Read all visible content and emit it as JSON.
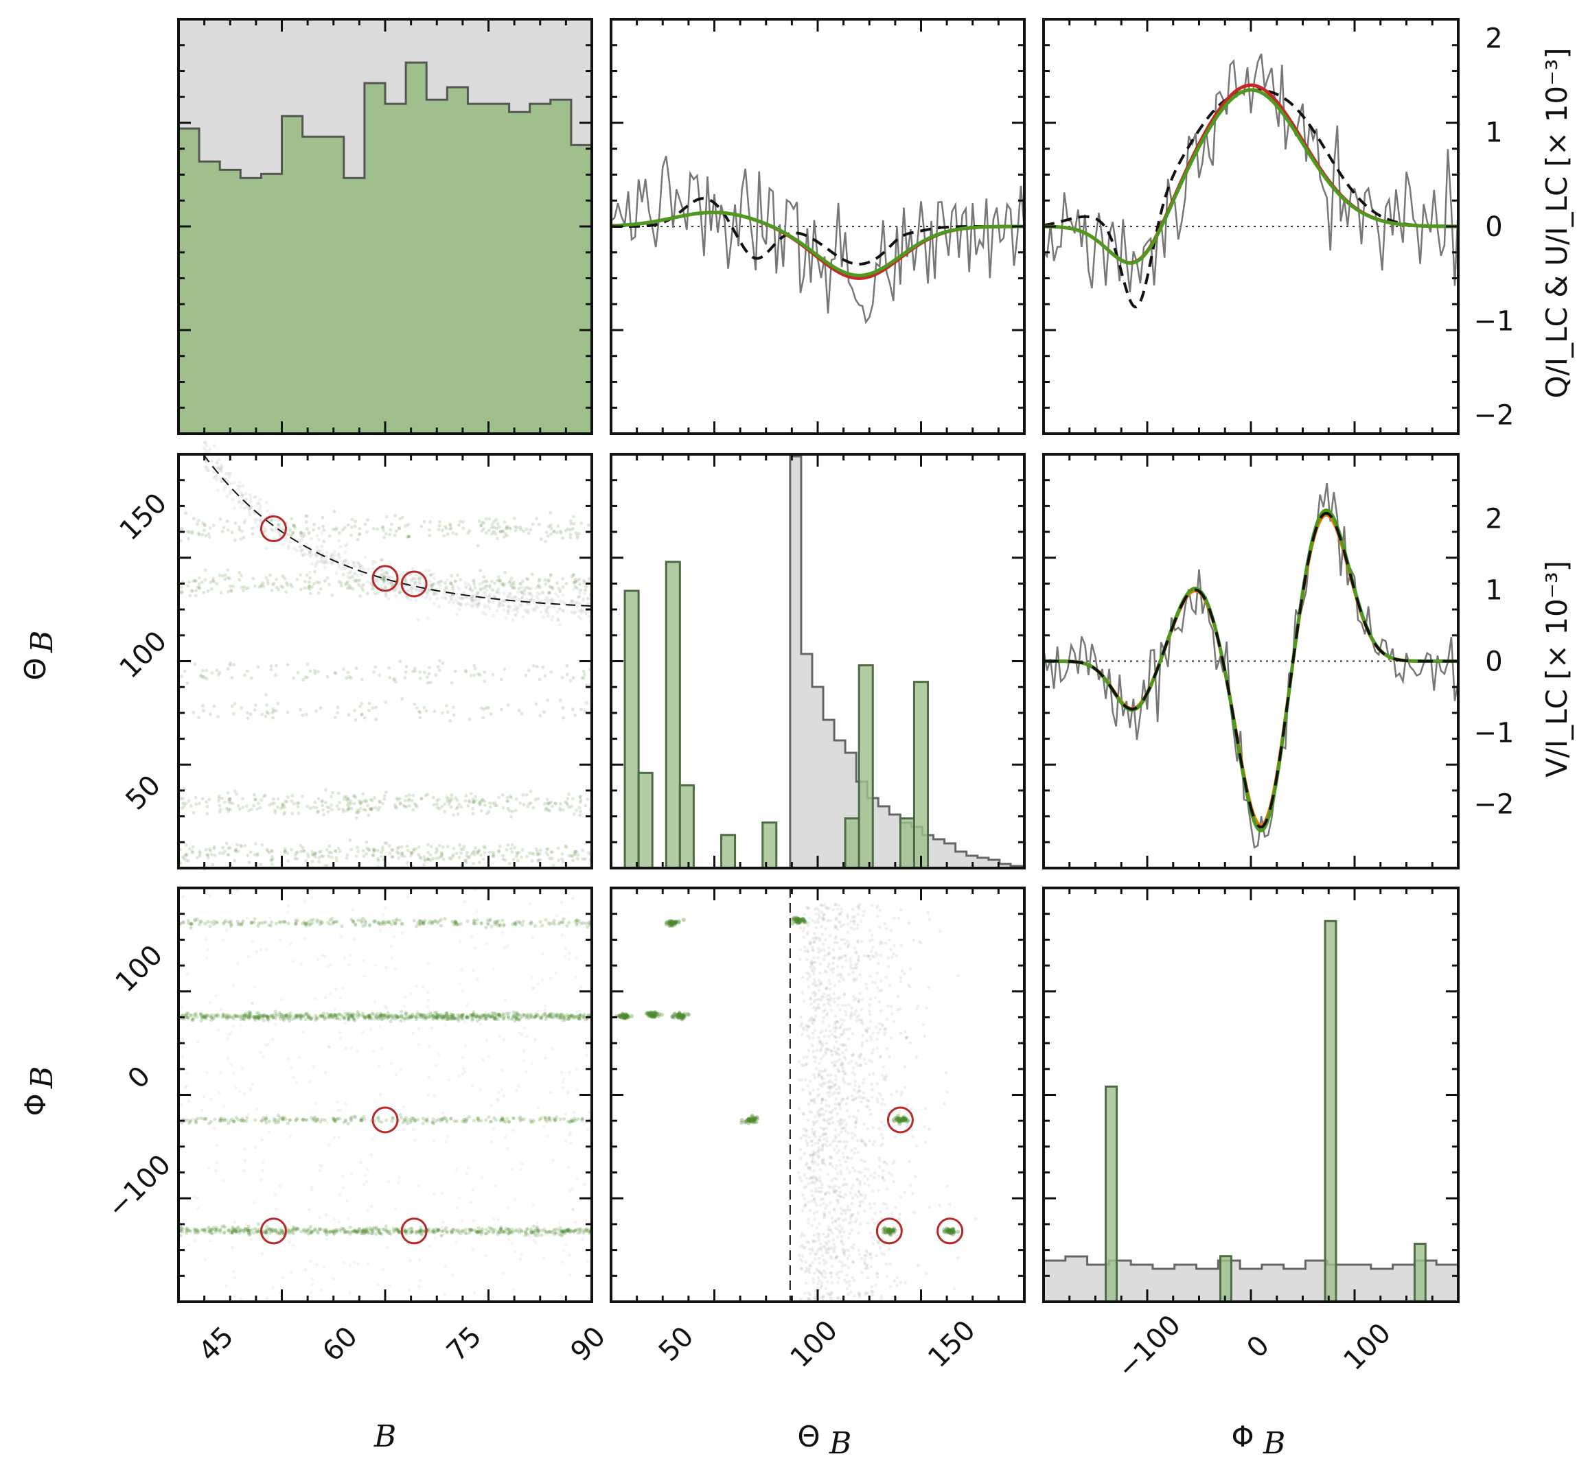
{
  "colors": {
    "green_fill": "#9fbf8c",
    "green_marker": "#4a8a2a",
    "gray_fill": "#dcdcdc",
    "gray_line": "#6a6a6a",
    "red_circle": "#b8282a",
    "red_curve": "#c62828",
    "orange_curve": "#e07b00",
    "green_curve": "#4e9a1f",
    "black": "#111111"
  },
  "chart_data": {
    "type": "corner-plot",
    "variables": [
      "B",
      "Θ_B",
      "Φ_B"
    ],
    "labels": {
      "xlabels": [
        "B",
        "Θ",
        "Φ"
      ],
      "subscript": "B",
      "ylabel_theta": "Θ",
      "ylabel_phi": "Φ",
      "right_label_qu": "Q/I_LC & U/I_LC  [× 10⁻³]",
      "right_label_v": "V/I_LC  [× 10⁻³]"
    },
    "axes": {
      "B": {
        "range": [
          40,
          90
        ],
        "ticks": [
          45,
          60,
          75,
          90
        ],
        "tick_labels": [
          "45",
          "60",
          "75",
          "90"
        ]
      },
      "theta": {
        "range": [
          25,
          175
        ],
        "ticks": [
          50,
          100,
          150
        ],
        "tick_labels": [
          "50",
          "100",
          "150"
        ]
      },
      "phi": {
        "range": [
          -200,
          180
        ],
        "ticks": [
          -100,
          0,
          100
        ],
        "tick_labels": [
          "−100",
          "0",
          "100"
        ]
      },
      "qu": {
        "range": [
          -2.2,
          2.2
        ],
        "ticks": [
          -2,
          -1,
          0,
          1,
          2
        ],
        "tick_labels": [
          "−2",
          "−1",
          "0",
          "1",
          "2"
        ]
      },
      "v": {
        "range": [
          -2.9,
          2.9
        ],
        "ticks": [
          -2,
          -1,
          0,
          1,
          2
        ],
        "tick_labels": [
          "−2",
          "−1",
          "0",
          "1",
          "2"
        ]
      }
    },
    "hist_B": {
      "bin_edges": [
        40,
        42.5,
        45,
        47.5,
        50,
        52.5,
        55,
        57.5,
        60,
        62.5,
        65,
        67.5,
        70,
        72.5,
        75,
        77.5,
        80,
        82.5,
        85,
        87.5,
        90
      ],
      "gray": [
        1.0,
        1.0,
        1.0,
        1.0,
        1.0,
        1.0,
        1.0,
        1.0,
        1.0,
        1.0,
        1.0,
        1.0,
        1.0,
        1.0,
        1.0,
        1.0,
        1.0,
        1.0,
        1.0,
        1.0
      ],
      "green": [
        0.74,
        0.66,
        0.64,
        0.62,
        0.63,
        0.77,
        0.72,
        0.72,
        0.62,
        0.85,
        0.8,
        0.9,
        0.81,
        0.84,
        0.8,
        0.8,
        0.78,
        0.8,
        0.81,
        0.7
      ]
    },
    "hist_theta": {
      "gray_bin_edges": [
        90,
        94,
        98,
        102,
        106,
        110,
        114,
        118,
        122,
        126,
        130,
        134,
        138,
        142,
        146,
        150,
        154,
        158,
        162,
        166,
        170,
        175
      ],
      "gray": [
        1.0,
        0.52,
        0.44,
        0.36,
        0.31,
        0.28,
        0.21,
        0.17,
        0.15,
        0.13,
        0.11,
        0.1,
        0.08,
        0.07,
        0.06,
        0.04,
        0.03,
        0.025,
        0.02,
        0.01,
        0.005
      ],
      "green_bin_edges": [
        30,
        35,
        40,
        45,
        50,
        55,
        60,
        65,
        70,
        75,
        80,
        85,
        90,
        95,
        100,
        105,
        110,
        115,
        120,
        125,
        130,
        135,
        140,
        145,
        150,
        155
      ],
      "green": [
        0.67,
        0.23,
        0,
        0.74,
        0.2,
        0,
        0,
        0.08,
        0,
        0,
        0.11,
        0,
        0,
        0,
        0,
        0,
        0.12,
        0.49,
        0,
        0,
        0.12,
        0.45,
        0,
        0,
        0
      ]
    },
    "hist_phi": {
      "bin_edges": [
        -200,
        -180,
        -160,
        -140,
        -120,
        -100,
        -80,
        -60,
        -40,
        -20,
        0,
        20,
        40,
        60,
        80,
        100,
        120,
        140,
        160,
        180
      ],
      "gray": [
        0.1,
        0.11,
        0.09,
        0.1,
        0.09,
        0.08,
        0.09,
        0.08,
        0.1,
        0.08,
        0.09,
        0.08,
        0.1,
        0.09,
        0.09,
        0.08,
        0.09,
        0.1,
        0.09
      ],
      "green_bars": [
        {
          "x0": -143,
          "x1": -133,
          "h": 0.52
        },
        {
          "x0": -38,
          "x1": -28,
          "h": 0.11
        },
        {
          "x0": 58,
          "x1": 68,
          "h": 0.92
        },
        {
          "x0": 140,
          "x1": 150,
          "h": 0.14
        }
      ]
    },
    "scatter_B_theta": {
      "theta_bands": [
        148,
        128,
        96,
        82,
        48,
        30
      ],
      "band_weights": [
        0.5,
        0.6,
        0.25,
        0.2,
        0.7,
        0.7
      ],
      "dashed_curve": "theta decreasing from 175 at B=43 to 118 at B=90",
      "red_circles": [
        {
          "x": 51.5,
          "y": 148
        },
        {
          "x": 65,
          "y": 130
        },
        {
          "x": 68.5,
          "y": 128
        }
      ]
    },
    "scatter_B_phi": {
      "phi_bands": [
        148,
        62,
        -33,
        -135
      ],
      "band_weights": [
        0.35,
        1.0,
        0.35,
        0.8
      ],
      "red_circles": [
        {
          "x": 51.5,
          "y": -135
        },
        {
          "x": 65,
          "y": -33
        },
        {
          "x": 68.5,
          "y": -135
        }
      ]
    },
    "scatter_theta_phi": {
      "green_clusters": [
        {
          "x": 47,
          "y": 148
        },
        {
          "x": 30,
          "y": 62
        },
        {
          "x": 40,
          "y": 64
        },
        {
          "x": 50,
          "y": 62
        },
        {
          "x": 76,
          "y": -33
        },
        {
          "x": 93,
          "y": 150
        },
        {
          "x": 130,
          "y": -33
        },
        {
          "x": 126,
          "y": -135
        },
        {
          "x": 148,
          "y": -135
        }
      ],
      "dashed_vline_theta": 90,
      "red_circles": [
        {
          "x": 130,
          "y": -33
        },
        {
          "x": 126,
          "y": -135
        },
        {
          "x": 148,
          "y": -135
        }
      ]
    },
    "qu_profiles": {
      "x_range": [
        -1,
        1
      ],
      "panels": [
        "Q",
        "U"
      ],
      "zero_line": true
    },
    "v_profile": {
      "x_range": [
        -200,
        180
      ],
      "zero_line": true
    }
  }
}
